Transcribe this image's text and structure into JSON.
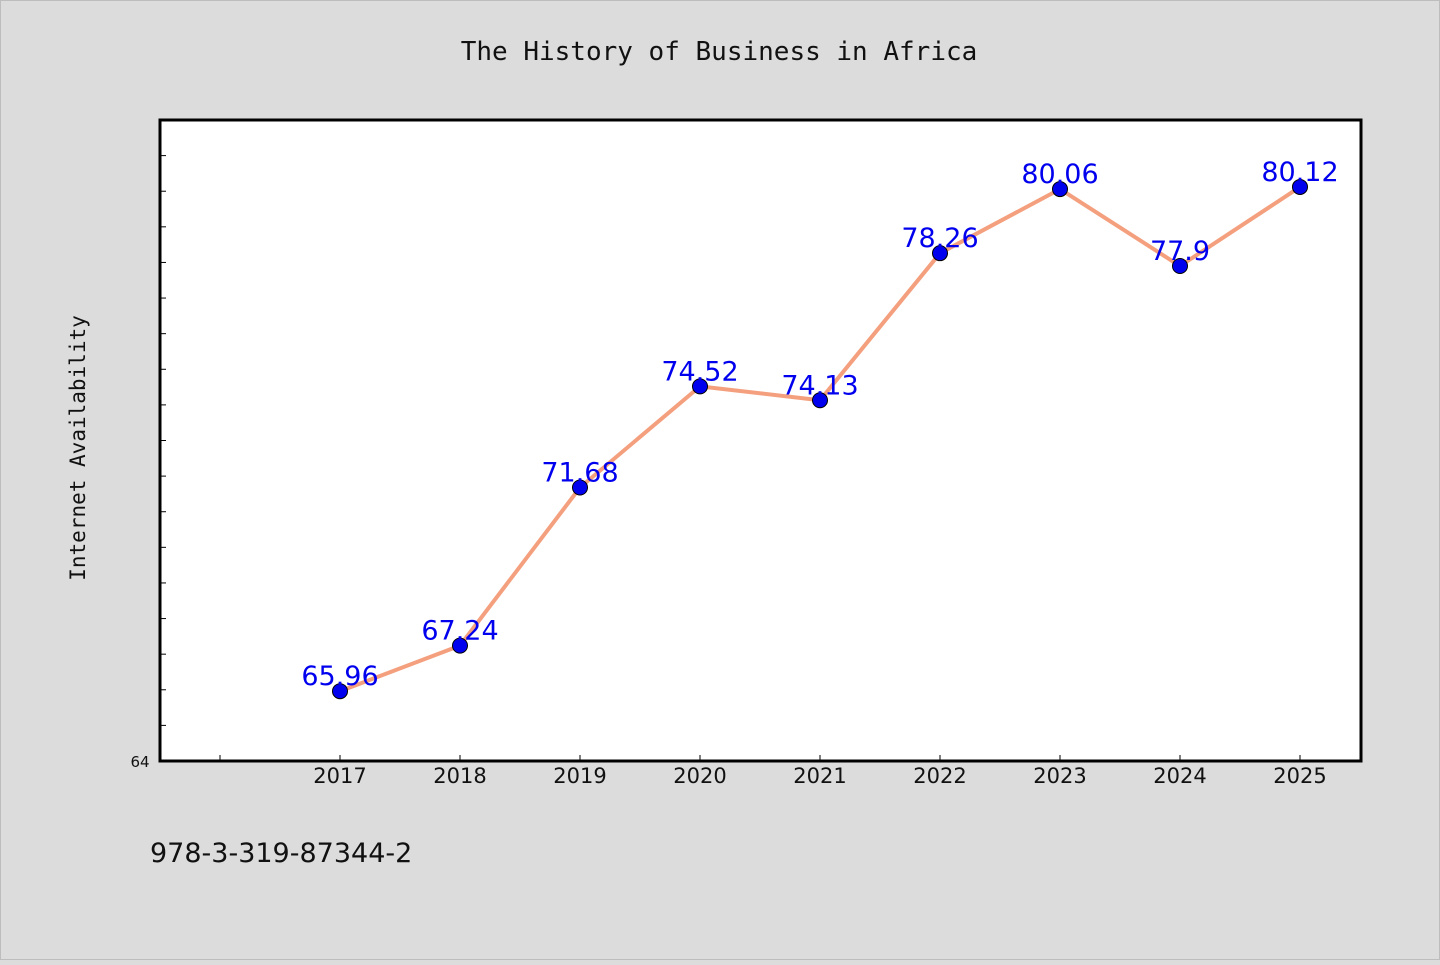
{
  "chart_data": {
    "type": "line",
    "title": "The History of Business in Africa",
    "xlabel": "",
    "ylabel": "Internet Availability",
    "categories": [
      "2017",
      "2018",
      "2019",
      "2020",
      "2021",
      "2022",
      "2023",
      "2024",
      "2025"
    ],
    "series": [
      {
        "values": [
          65.96,
          67.24,
          71.68,
          74.52,
          74.13,
          78.26,
          80.06,
          77.9,
          80.12
        ],
        "labels": [
          "65.96",
          "67.24",
          "71.68",
          "74.52",
          "74.13",
          "78.26",
          "80.06",
          "77.9",
          "80.12"
        ],
        "line_color": "#f4a07e",
        "marker_color": "#0000ee"
      }
    ],
    "ylim": [
      64,
      82
    ],
    "y_tick_labels": [
      "64"
    ],
    "grid": false,
    "legend": "none",
    "footnote": "978-3-319-87344-2",
    "colors": {
      "background": "#dcdcdc",
      "plot_background": "#ffffff",
      "label_color": "#0000ee"
    }
  }
}
